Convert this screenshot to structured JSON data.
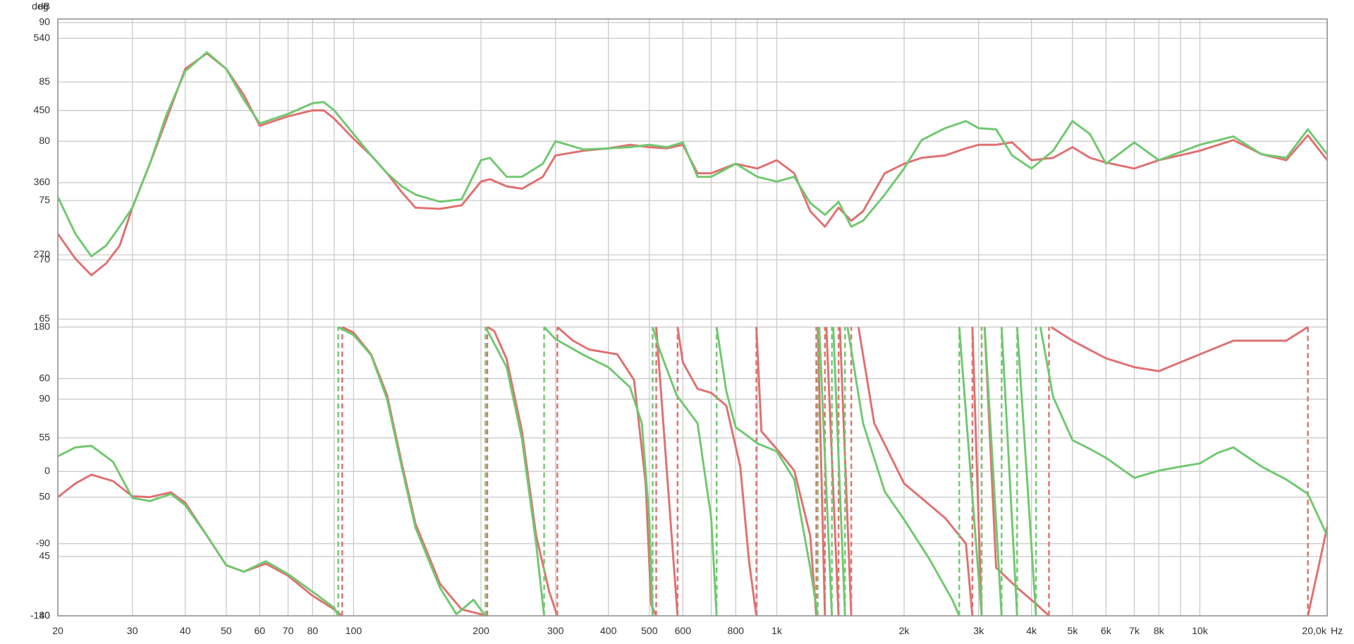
{
  "chart_data": {
    "type": "line",
    "ylabel": "dB",
    "y2label": "deg",
    "xlabel": "Hz",
    "xscale": "log",
    "grid": true,
    "xlim": [
      20,
      20000
    ],
    "ylim": [
      40,
      90.3
    ],
    "y2lim": [
      -180,
      564
    ],
    "yticks": [
      40,
      45,
      50,
      55,
      60,
      65,
      70,
      75,
      80,
      85,
      90
    ],
    "y2ticks": [
      -180,
      -90,
      0,
      90,
      180,
      270,
      360,
      450,
      540
    ],
    "xticks": [
      20,
      30,
      40,
      50,
      60,
      70,
      80,
      100,
      200,
      300,
      400,
      500,
      600,
      800,
      {
        "value": 1000,
        "label": "1k"
      },
      {
        "value": 2000,
        "label": "2k"
      },
      {
        "value": 3000,
        "label": "3k"
      },
      {
        "value": 4000,
        "label": "4k"
      },
      {
        "value": 5000,
        "label": "5k"
      },
      {
        "value": 6000,
        "label": "6k"
      },
      {
        "value": 7000,
        "label": "7k"
      },
      {
        "value": 8000,
        "label": "8k"
      },
      {
        "value": 10000,
        "label": "10k"
      },
      {
        "value": 20000,
        "label": "20,0k"
      }
    ],
    "xgrid": [
      90,
      700,
      900,
      9000
    ],
    "x": [
      20,
      22,
      24,
      26,
      28,
      30,
      33,
      36,
      40,
      45,
      50,
      55,
      60,
      70,
      80,
      85,
      90,
      100,
      110,
      120,
      130,
      140,
      160,
      180,
      200,
      210,
      230,
      250,
      280,
      300,
      350,
      400,
      450,
      500,
      550,
      600,
      650,
      700,
      800,
      900,
      1000,
      1100,
      1200,
      1300,
      1400,
      1500,
      1600,
      1800,
      2000,
      2200,
      2500,
      2800,
      3000,
      3300,
      3600,
      4000,
      4500,
      5000,
      5500,
      6000,
      7000,
      8000,
      10000,
      12000,
      14000,
      16000,
      18000,
      20000
    ],
    "series": [
      {
        "color": "#e07070",
        "axis": "y",
        "values": [
          72.2,
          70.1,
          68.7,
          69.7,
          71.2,
          74.4,
          78.1,
          81.7,
          86.1,
          87.4,
          86.1,
          83.9,
          81.3,
          82.1,
          82.6,
          82.6,
          81.9,
          80.2,
          78.8,
          77.3,
          75.7,
          74.4,
          74.3,
          74.6,
          76.6,
          76.8,
          76.2,
          76.0,
          77.0,
          78.8,
          79.2,
          79.4,
          79.7,
          79.5,
          79.4,
          79.7,
          77.3,
          77.3,
          78.1,
          77.7,
          78.4,
          77.3,
          74.1,
          72.8,
          74.4,
          73.3,
          74.1,
          77.3,
          78.1,
          78.6,
          78.8,
          79.4,
          79.7,
          79.7,
          79.9,
          78.4,
          78.6,
          79.5,
          78.6,
          78.2,
          77.7,
          78.4,
          79.2,
          80.1,
          78.9,
          78.4,
          80.5,
          78.4
        ]
      },
      {
        "color": "#70c870",
        "axis": "y",
        "values": [
          75.3,
          72.2,
          70.3,
          71.2,
          72.8,
          74.4,
          78.1,
          82.1,
          85.9,
          87.5,
          86.1,
          83.5,
          81.5,
          82.3,
          83.2,
          83.3,
          82.6,
          80.6,
          78.8,
          77.3,
          76.2,
          75.5,
          74.9,
          75.1,
          78.4,
          78.6,
          77.0,
          77.0,
          78.1,
          80.0,
          79.3,
          79.4,
          79.5,
          79.7,
          79.5,
          79.9,
          77.0,
          77.0,
          78.1,
          77.0,
          76.6,
          77.0,
          74.8,
          73.8,
          74.9,
          72.8,
          73.3,
          75.5,
          77.7,
          80.1,
          81.1,
          81.7,
          81.1,
          81.0,
          78.8,
          77.7,
          79.2,
          81.7,
          80.6,
          78.1,
          79.9,
          78.4,
          79.7,
          80.4,
          78.9,
          78.6,
          81.0,
          78.9
        ]
      },
      {
        "color": "#e07070",
        "axis": "y2",
        "x": [
          20,
          22,
          24,
          27,
          30,
          33,
          37,
          40,
          45,
          50,
          55,
          62,
          70,
          80,
          90,
          94,
          94,
          94,
          100,
          110,
          120,
          130,
          140,
          160,
          180,
          207,
          207,
          207,
          215,
          230,
          250,
          270,
          290,
          303,
          303,
          303,
          330,
          360,
          420,
          460,
          490,
          505,
          519,
          519,
          519,
          550,
          583,
          583,
          583,
          600,
          650,
          700,
          760,
          820,
          860,
          895,
          895,
          895,
          920,
          1000,
          1100,
          1200,
          1240,
          1240,
          1250,
          1300,
          1300,
          1310,
          1400,
          1400,
          1410,
          1500,
          1500,
          1560,
          1700,
          2000,
          2500,
          2800,
          2900,
          2900,
          2900,
          3050,
          3050,
          3100,
          3300,
          3700,
          4100,
          4400,
          4400,
          4450,
          5000,
          6000,
          7000,
          8000,
          10000,
          12000,
          16000,
          18000,
          18000,
          18000,
          20000
        ],
        "values": [
          -32,
          -15,
          -4,
          -12,
          -31,
          -32,
          -26,
          -39,
          -80,
          -117,
          -125,
          -115,
          -130,
          -155,
          -172,
          -180,
          null,
          180,
          173,
          146,
          95,
          10,
          -65,
          -140,
          -172,
          -180,
          null,
          180,
          175,
          140,
          50,
          -80,
          -150,
          -180,
          null,
          180,
          163,
          152,
          146,
          114,
          -15,
          -166,
          -180,
          null,
          180,
          0,
          -180,
          null,
          180,
          136,
          103,
          98,
          82,
          6,
          -112,
          -180,
          null,
          180,
          50,
          28,
          1,
          -80,
          -180,
          null,
          180,
          -180,
          null,
          180,
          -180,
          null,
          180,
          -180,
          null,
          180,
          60,
          -15,
          -58,
          -90,
          -180,
          null,
          180,
          -180,
          null,
          180,
          -120,
          -145,
          -165,
          -180,
          null,
          180,
          163,
          141,
          130,
          125,
          146,
          163,
          163,
          180,
          null,
          -180,
          -69
        ]
      },
      {
        "color": "#70c870",
        "axis": "y2",
        "x": [
          20,
          22,
          24,
          27,
          30,
          33,
          37,
          40,
          45,
          50,
          55,
          62,
          70,
          80,
          90,
          92,
          92,
          92,
          100,
          110,
          120,
          130,
          140,
          160,
          175,
          192,
          205,
          205,
          205,
          230,
          250,
          270,
          282,
          282,
          282,
          300,
          350,
          400,
          450,
          480,
          500,
          509,
          509,
          509,
          530,
          580,
          650,
          700,
          721,
          721,
          721,
          760,
          800,
          850,
          900,
          1000,
          1100,
          1200,
          1250,
          1250,
          1260,
          1350,
          1350,
          1360,
          1450,
          1450,
          1470,
          1600,
          1800,
          2000,
          2300,
          2600,
          2700,
          2700,
          2700,
          3050,
          3050,
          3100,
          3400,
          3400,
          3400,
          3700,
          3700,
          3700,
          4100,
          4100,
          4200,
          4500,
          5000,
          5500,
          6000,
          7000,
          8000,
          9000,
          10000,
          11000,
          12000,
          14000,
          16000,
          18000,
          20000
        ],
        "values": [
          19,
          30,
          32,
          12,
          -33,
          -37,
          -28,
          -42,
          -80,
          -117,
          -125,
          -112,
          -128,
          -150,
          -170,
          -180,
          null,
          180,
          170,
          145,
          90,
          5,
          -70,
          -145,
          -178,
          -160,
          -180,
          null,
          180,
          130,
          40,
          -90,
          -180,
          null,
          180,
          165,
          145,
          130,
          105,
          60,
          -60,
          -180,
          null,
          180,
          150,
          95,
          60,
          -58,
          -180,
          null,
          180,
          100,
          55,
          45,
          35,
          25,
          -10,
          -120,
          -180,
          null,
          180,
          -180,
          null,
          180,
          -180,
          null,
          180,
          60,
          -25,
          -60,
          -110,
          -160,
          -180,
          null,
          180,
          -180,
          null,
          180,
          -180,
          null,
          180,
          -180,
          null,
          180,
          -180,
          null,
          180,
          93,
          39,
          28,
          17,
          -8,
          1,
          6,
          10,
          23,
          30,
          6,
          -10,
          -28,
          -80
        ]
      }
    ]
  }
}
